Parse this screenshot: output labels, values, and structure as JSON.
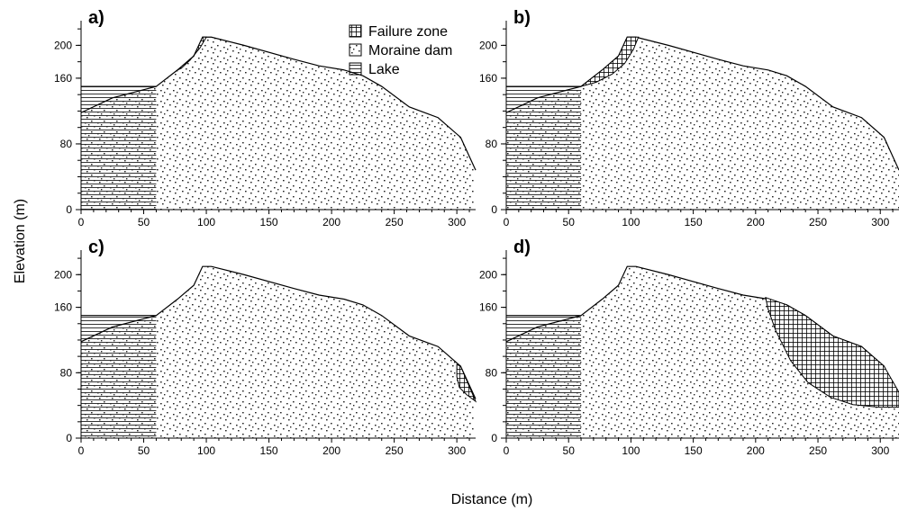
{
  "figure": {
    "y_axis_title": "Elevation (m)",
    "x_axis_title": "Distance (m)"
  },
  "legend": [
    {
      "label": "Failure zone",
      "pattern": "crosshatch"
    },
    {
      "label": "Moraine dam",
      "pattern": "dots"
    },
    {
      "label": "Lake",
      "pattern": "horizontal-lines"
    }
  ],
  "chart_data": [
    {
      "type": "area",
      "panel": "a)",
      "xlim": [
        0,
        315
      ],
      "ylim": [
        0,
        230
      ],
      "x_ticks": [
        0,
        50,
        100,
        150,
        200,
        250,
        300
      ],
      "y_ticks": [
        0,
        80,
        160,
        200
      ],
      "dam_profile": [
        [
          0,
          118
        ],
        [
          25,
          136
        ],
        [
          60,
          150
        ],
        [
          77,
          170
        ],
        [
          90,
          187
        ],
        [
          97,
          210
        ],
        [
          104,
          210
        ],
        [
          130,
          200
        ],
        [
          170,
          183
        ],
        [
          190,
          175
        ],
        [
          210,
          170
        ],
        [
          225,
          163
        ],
        [
          240,
          150
        ],
        [
          262,
          125
        ],
        [
          285,
          112
        ],
        [
          303,
          88
        ],
        [
          315,
          48
        ]
      ],
      "lake_level": 150,
      "failure_zone": [
        [
          77,
          170
        ],
        [
          90,
          187
        ],
        [
          97,
          210
        ],
        [
          100,
          210
        ],
        [
          95,
          197
        ],
        [
          87,
          182
        ],
        [
          80,
          172
        ]
      ]
    },
    {
      "type": "area",
      "panel": "b)",
      "xlim": [
        0,
        315
      ],
      "ylim": [
        0,
        230
      ],
      "x_ticks": [
        0,
        50,
        100,
        150,
        200,
        250,
        300
      ],
      "y_ticks": [
        0,
        80,
        160,
        200
      ],
      "dam_profile": [
        [
          0,
          118
        ],
        [
          25,
          136
        ],
        [
          60,
          150
        ],
        [
          77,
          170
        ],
        [
          90,
          187
        ],
        [
          97,
          210
        ],
        [
          104,
          210
        ],
        [
          130,
          200
        ],
        [
          170,
          183
        ],
        [
          190,
          175
        ],
        [
          210,
          170
        ],
        [
          225,
          163
        ],
        [
          240,
          150
        ],
        [
          262,
          125
        ],
        [
          285,
          112
        ],
        [
          303,
          88
        ],
        [
          315,
          48
        ]
      ],
      "lake_level": 150,
      "failure_zone": [
        [
          60,
          150
        ],
        [
          77,
          170
        ],
        [
          90,
          187
        ],
        [
          97,
          210
        ],
        [
          106,
          210
        ],
        [
          102,
          195
        ],
        [
          95,
          178
        ],
        [
          85,
          165
        ],
        [
          72,
          155
        ]
      ]
    },
    {
      "type": "area",
      "panel": "c)",
      "xlim": [
        0,
        315
      ],
      "ylim": [
        0,
        230
      ],
      "x_ticks": [
        0,
        50,
        100,
        150,
        200,
        250,
        300
      ],
      "y_ticks": [
        0,
        80,
        160,
        200
      ],
      "dam_profile": [
        [
          0,
          118
        ],
        [
          25,
          136
        ],
        [
          60,
          150
        ],
        [
          77,
          170
        ],
        [
          90,
          187
        ],
        [
          97,
          210
        ],
        [
          104,
          210
        ],
        [
          130,
          200
        ],
        [
          170,
          183
        ],
        [
          190,
          175
        ],
        [
          210,
          170
        ],
        [
          225,
          163
        ],
        [
          240,
          150
        ],
        [
          262,
          125
        ],
        [
          285,
          112
        ],
        [
          303,
          88
        ],
        [
          315,
          48
        ]
      ],
      "lake_level": 150,
      "failure_zone": [
        [
          300,
          90
        ],
        [
          303,
          88
        ],
        [
          315,
          45
        ],
        [
          308,
          53
        ],
        [
          302,
          62
        ],
        [
          300,
          75
        ]
      ]
    },
    {
      "type": "area",
      "panel": "d)",
      "xlim": [
        0,
        315
      ],
      "ylim": [
        0,
        230
      ],
      "x_ticks": [
        0,
        50,
        100,
        150,
        200,
        250,
        300
      ],
      "y_ticks": [
        0,
        80,
        160,
        200
      ],
      "dam_profile": [
        [
          0,
          118
        ],
        [
          25,
          136
        ],
        [
          60,
          150
        ],
        [
          77,
          170
        ],
        [
          90,
          187
        ],
        [
          97,
          210
        ],
        [
          104,
          210
        ],
        [
          130,
          200
        ],
        [
          170,
          183
        ],
        [
          190,
          175
        ],
        [
          210,
          170
        ],
        [
          225,
          163
        ],
        [
          240,
          150
        ],
        [
          262,
          125
        ],
        [
          285,
          112
        ],
        [
          303,
          88
        ],
        [
          315,
          48
        ]
      ],
      "lake_level": 150,
      "failure_zone": [
        [
          208,
          172
        ],
        [
          225,
          163
        ],
        [
          240,
          150
        ],
        [
          262,
          125
        ],
        [
          285,
          112
        ],
        [
          303,
          88
        ],
        [
          315,
          56
        ],
        [
          315,
          38
        ],
        [
          298,
          38
        ],
        [
          278,
          41
        ],
        [
          260,
          50
        ],
        [
          242,
          68
        ],
        [
          228,
          95
        ],
        [
          216,
          132
        ],
        [
          210,
          158
        ]
      ]
    }
  ]
}
